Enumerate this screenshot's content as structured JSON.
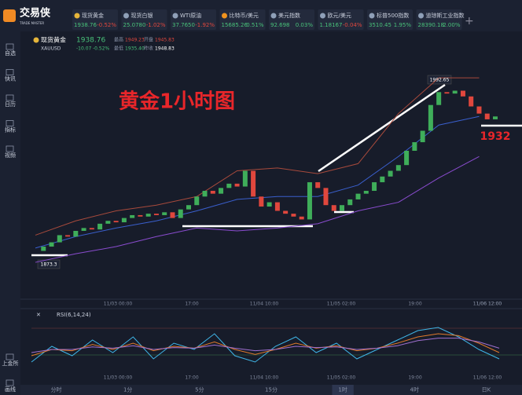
{
  "header": {
    "logo": "交易侠",
    "logo_sub": "TRADE MASTER"
  },
  "quotes": [
    {
      "name": "现货黄金",
      "price": "1938.76",
      "change": "-0.52%"
    },
    {
      "name": "现货白银",
      "price": "25.0780",
      "change": "-1.02%"
    },
    {
      "name": "WTI原油",
      "price": "37.7650",
      "change": "-1.92%"
    },
    {
      "name": "比特币/美元",
      "price": "15685.26",
      "change": "0.51%"
    },
    {
      "name": "美元指数",
      "price": "92.698",
      "change": "0.03%"
    },
    {
      "name": "欧元/美元",
      "price": "1.18167",
      "change": "-0.04%"
    },
    {
      "name": "标普500指数",
      "price": "3510.45",
      "change": "1.95%"
    },
    {
      "name": "道琼斯工业指数",
      "price": "28390.18",
      "change": "2.00%"
    }
  ],
  "sidebar": [
    "自选",
    "快讯",
    "日历",
    "指标",
    "视频",
    "上金所",
    "画线"
  ],
  "instrument": {
    "name": "现货黄金",
    "code": "XAUUSD",
    "price": "1938.76",
    "change": "-10.07",
    "change_pct": "-0.52%",
    "high_label": "最高",
    "high": "1949.23",
    "open_label": "开盘",
    "open": "1945.83",
    "low_label": "最低",
    "low": "1935.40",
    "prev_label": "昨收",
    "prev": "1948.83"
  },
  "chart_data": {
    "type": "candlestick",
    "title": "黄金1小时图",
    "annotations": [
      "1992.65",
      "1873.3",
      "1932"
    ],
    "ylim": [
      1860,
      2000
    ],
    "closes": [
      1874,
      1877,
      1880,
      1885,
      1884,
      1888,
      1890,
      1889,
      1893,
      1895,
      1894,
      1897,
      1899,
      1898,
      1900,
      1899,
      1901,
      1897,
      1903,
      1906,
      1912,
      1916,
      1914,
      1918,
      1921,
      1919,
      1930,
      1912,
      1905,
      1908,
      1902,
      1900,
      1898,
      1896,
      1922,
      1918,
      1906,
      1902,
      1906,
      1910,
      1914,
      1916,
      1922,
      1926,
      1930,
      1934,
      1944,
      1950,
      1958,
      1976,
      1985,
      1984,
      1986,
      1982,
      1975,
      1970,
      1966,
      1968
    ],
    "up_color": "#3fae5a",
    "down_color": "#e0473d",
    "band_x": [
      0,
      5,
      10,
      15,
      20,
      25,
      30,
      35,
      40,
      45,
      50,
      55
    ],
    "bands": [
      {
        "color": "#a84a3c",
        "values": [
          1885,
          1895,
          1902,
          1906,
          1912,
          1930,
          1932,
          1928,
          1935,
          1970,
          1995,
          1995
        ]
      },
      {
        "color": "#3a5fcd",
        "values": [
          1876,
          1884,
          1890,
          1895,
          1902,
          1910,
          1912,
          1912,
          1920,
          1940,
          1962,
          1968
        ]
      },
      {
        "color": "#8a4ccf",
        "values": [
          1866,
          1872,
          1877,
          1884,
          1890,
          1888,
          1890,
          1893,
          1902,
          1908,
          1925,
          1940
        ]
      }
    ],
    "x_labels": [
      "11/03 00:00",
      "17:00",
      "11/04 10:00",
      "11/05 02:00",
      "19:00",
      "11/06 12:00"
    ]
  },
  "rsi": {
    "title": "RSI(6,14,24)",
    "ylim": [
      0,
      100
    ],
    "x_labels": [
      "11/03 00:00",
      "17:00",
      "11/04 10:00",
      "11/05 02:00",
      "19:00",
      "11/06 12:00"
    ],
    "series": [
      {
        "color": "#3fb6e8",
        "values": [
          30,
          55,
          40,
          65,
          45,
          70,
          35,
          60,
          50,
          75,
          40,
          30,
          55,
          70,
          45,
          60,
          35,
          50,
          65,
          80,
          85,
          70,
          50,
          35
        ]
      },
      {
        "color": "#e07a2a",
        "values": [
          40,
          50,
          48,
          58,
          50,
          60,
          48,
          55,
          52,
          62,
          50,
          42,
          50,
          60,
          52,
          56,
          48,
          52,
          60,
          70,
          75,
          72,
          60,
          45
        ]
      },
      {
        "color": "#a070d0",
        "values": [
          45,
          50,
          50,
          54,
          52,
          56,
          50,
          53,
          52,
          57,
          52,
          48,
          50,
          55,
          53,
          54,
          50,
          52,
          56,
          64,
          68,
          68,
          62,
          52
        ]
      }
    ]
  },
  "timeframes": [
    "分时",
    "1分",
    "5分",
    "15分",
    "1时",
    "4时",
    "日K"
  ],
  "active_timeframe": 4
}
